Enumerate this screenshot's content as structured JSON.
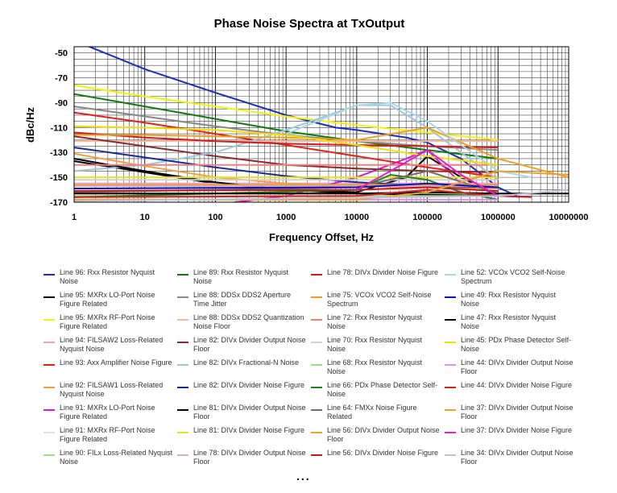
{
  "chart_data": {
    "type": "line",
    "title": "Phase Noise Spectra at TxOutput",
    "xlabel": "Frequency Offset, Hz",
    "ylabel": "dBc/Hz",
    "x_scale": "log",
    "xlim": [
      1,
      1000000
    ],
    "ylim": [
      -170,
      -45
    ],
    "x_ticks": [
      "1",
      "10",
      "100",
      "1000",
      "10000",
      "100000",
      "1000000",
      "10000000"
    ],
    "y_ticks": [
      "-50",
      "-70",
      "-90",
      "-110",
      "-130",
      "-150",
      "-170"
    ],
    "grid": true,
    "legend_position": "bottom",
    "series": [
      {
        "name": "Line 96: Rxx Resistor Nyquist Noise",
        "color": "#1a2fb8",
        "x": [
          1,
          10,
          100,
          1000,
          5000,
          10000,
          50000,
          100000,
          300000,
          1000000,
          2000000
        ],
        "y": [
          -40,
          -63,
          -82,
          -100,
          -110,
          -112,
          -118,
          -122,
          -135,
          -158,
          -166
        ]
      },
      {
        "name": "Line 95: MXRx LO-Port Noise Figure Related",
        "color": "#000000",
        "x": [
          1,
          100,
          1000,
          10000,
          50000,
          100000,
          300000,
          1000000
        ],
        "y": [
          -137,
          -155,
          -160,
          -162,
          -150,
          -133,
          -150,
          -165
        ]
      },
      {
        "name": "Line 95: MXRx RF-Port Noise Figure Related",
        "color": "#f2f20a",
        "x": [
          1,
          10,
          100,
          1000,
          10000,
          100000,
          1000000
        ],
        "y": [
          -76,
          -85,
          -93,
          -101,
          -108,
          -114,
          -120
        ]
      },
      {
        "name": "Line 94: FILSAW2 Loss-Related Nyquist Noise",
        "color": "#f09ae0",
        "x": [
          1,
          1000000
        ],
        "y": [
          -155,
          -155
        ]
      },
      {
        "name": "Line 93: Axx Amplifier Noise Figure",
        "color": "#e8201a",
        "x": [
          1,
          10,
          100,
          1000,
          10000,
          100000,
          1000000
        ],
        "y": [
          -98,
          -106,
          -115,
          -124,
          -133,
          -142,
          -150
        ]
      },
      {
        "name": "Line 92: FILSAW1 Loss-Related Nyquist Noise",
        "color": "#f0a040",
        "x": [
          1,
          10,
          100,
          1000,
          10000,
          100000,
          1000000
        ],
        "y": [
          -131,
          -141,
          -150,
          -155,
          -157,
          -158,
          -159
        ]
      },
      {
        "name": "Line 91: MXRx LO-Port Noise Figure Related",
        "color": "#d418d0",
        "x": [
          10,
          100,
          1000,
          10000,
          50000,
          100000,
          300000
        ],
        "y": [
          -176,
          -172,
          -165,
          -150,
          -135,
          -128,
          -155
        ]
      },
      {
        "name": "Line 91: MXRx RF-Port Noise Figure Related",
        "color": "#e0e0e0",
        "x": [
          1,
          1000000
        ],
        "y": [
          -160,
          -160
        ]
      },
      {
        "name": "Line 90: FILx Loss-Related Nyquist Noise",
        "color": "#9ee08a",
        "x": [
          1,
          1000000
        ],
        "y": [
          -163,
          -163
        ]
      },
      {
        "name": "Line 89: Rxx Resistor Nyquist Noise",
        "color": "#107a10",
        "x": [
          1,
          10,
          100,
          1000,
          10000,
          100000,
          1000000
        ],
        "y": [
          -83,
          -93,
          -103,
          -113,
          -121,
          -128,
          -135
        ]
      },
      {
        "name": "Line 88: DDSx DDS2 Aperture Time Jitter",
        "color": "#888888",
        "x": [
          1,
          10,
          100,
          1000,
          10000,
          100000,
          1000000
        ],
        "y": [
          -93,
          -101,
          -109,
          -116,
          -121,
          -125,
          -128
        ]
      },
      {
        "name": "Line 88: DDSx DDS2 Quantization Noise Floor",
        "color": "#f5b8a0",
        "x": [
          1,
          1000000
        ],
        "y": [
          -121,
          -121
        ]
      },
      {
        "name": "Line 82: DIVx Divider Output Noise Floor",
        "color": "#8a2a2a",
        "x": [
          1,
          10,
          100,
          1000,
          10000,
          100000,
          1000000
        ],
        "y": [
          -117,
          -125,
          -133,
          -140,
          -143,
          -145,
          -146
        ]
      },
      {
        "name": "Line 82: DIVx Fractional-N Noise",
        "color": "#9ec8d8",
        "x": [
          1,
          10,
          100,
          1000,
          10000,
          30000,
          100000,
          1000000
        ],
        "y": [
          -145,
          -140,
          -130,
          -112,
          -92,
          -92,
          -110,
          -152
        ]
      },
      {
        "name": "Line 82: DIVx Divider Noise Figure",
        "color": "#1a2a9a",
        "x": [
          1,
          10,
          100,
          1000,
          10000,
          100000,
          1000000
        ],
        "y": [
          -126,
          -134,
          -142,
          -149,
          -154,
          -157,
          -158
        ]
      },
      {
        "name": "Line 81: DIVx Divider Output Noise Floor",
        "color": "#000000",
        "x": [
          1,
          10,
          100,
          1000,
          10000,
          100000,
          1000000
        ],
        "y": [
          -135,
          -145,
          -154,
          -160,
          -163,
          -164,
          -165
        ]
      },
      {
        "name": "Line 81: DIVx Divider Noise Figure",
        "color": "#e8e020",
        "x": [
          1,
          1000000
        ],
        "y": [
          -150,
          -150
        ]
      },
      {
        "name": "Line 78: DIVx Divider Output Noise Floor",
        "color": "#c8b0e0",
        "x": [
          1,
          1000000
        ],
        "y": [
          -157,
          -157
        ]
      },
      {
        "name": "Line 78: DIVx Divider Noise Figure",
        "color": "#d41a1a",
        "x": [
          1,
          10,
          100,
          1000,
          10000,
          100000,
          1000000
        ],
        "y": [
          -114,
          -118,
          -121,
          -123,
          -124,
          -125,
          -126
        ]
      },
      {
        "name": "Line 75: VCOx VCO2 Self-Noise Spectrum",
        "color": "#f0a020",
        "x": [
          1,
          10,
          100,
          1000,
          10000,
          100000,
          1000000,
          10000000
        ],
        "y": [
          -116,
          -116,
          -117,
          -118,
          -120,
          -110,
          -135,
          -150
        ]
      },
      {
        "name": "Line 72: Rxx Resistor Nyquist Noise",
        "color": "#f08080",
        "x": [
          1,
          1000000
        ],
        "y": [
          -140,
          -140
        ]
      },
      {
        "name": "Line 70: Rxx Resistor Nyquist Noise",
        "color": "#d0d0d0",
        "x": [
          1,
          1000000
        ],
        "y": [
          -152,
          -152
        ]
      },
      {
        "name": "Line 68: Rxx Resistor Nyquist Noise",
        "color": "#a0d890",
        "x": [
          1,
          1000000
        ],
        "y": [
          -165,
          -165
        ]
      },
      {
        "name": "Line 66: PDx Phase Detector Self-Noise",
        "color": "#20801a",
        "x": [
          1,
          10000,
          30000,
          100000,
          300000,
          1000000
        ],
        "y": [
          -166,
          -160,
          -148,
          -152,
          -162,
          -168
        ]
      },
      {
        "name": "Line 64: FMXx Noise Figure Related",
        "color": "#707070",
        "x": [
          1,
          100,
          10000,
          100000,
          1000000
        ],
        "y": [
          -162,
          -160,
          -158,
          -145,
          -163
        ]
      },
      {
        "name": "Line 56: DIVx Divider Output Noise Floor",
        "color": "#f0a030",
        "x": [
          1,
          1000000
        ],
        "y": [
          -156,
          -156
        ]
      },
      {
        "name": "Line 56: DIVx Divider Noise Figure",
        "color": "#c81818",
        "x": [
          1,
          10000,
          100000,
          1000000
        ],
        "y": [
          -161,
          -160,
          -158,
          -161
        ]
      },
      {
        "name": "Line 52: VCOx VCO2 Self-Noise Spectrum",
        "color": "#a8d8e8",
        "x": [
          1000,
          10000,
          30000,
          100000,
          1000000,
          3000000
        ],
        "y": [
          -115,
          -92,
          -90,
          -105,
          -145,
          -150
        ]
      },
      {
        "name": "Line 49: Rxx Resistor Nyquist Noise",
        "color": "#1010c0",
        "x": [
          1,
          10000,
          100000,
          1000000
        ],
        "y": [
          -159,
          -158,
          -155,
          -158
        ]
      },
      {
        "name": "Line 47: Rxx Resistor Nyquist Noise",
        "color": "#000000",
        "x": [
          1,
          10000,
          100000,
          1000000,
          10000000
        ],
        "y": [
          -163,
          -163,
          -162,
          -163,
          -163
        ]
      },
      {
        "name": "Line 45: PDx Phase Detector Self-Noise",
        "color": "#f0e000",
        "x": [
          1,
          10,
          100,
          1000,
          10000,
          100000,
          1000000
        ],
        "y": [
          -109,
          -110,
          -112,
          -116,
          -124,
          -133,
          -140
        ]
      },
      {
        "name": "Line 44: DIVx Divider Output Noise Floor",
        "color": "#e090f0",
        "x": [
          1,
          1000000
        ],
        "y": [
          -168,
          -168
        ]
      },
      {
        "name": "Line 44: DIVx Divider Noise Figure",
        "color": "#d02020",
        "x": [
          1,
          10000,
          100000,
          1000000,
          3000000
        ],
        "y": [
          -166,
          -165,
          -160,
          -165,
          -166
        ]
      },
      {
        "name": "Line 37: DIVx Divider Output Noise Floor",
        "color": "#f0a030",
        "x": [
          1,
          10000,
          100000,
          1000000,
          10000000
        ],
        "y": [
          -168,
          -168,
          -162,
          -145,
          -148
        ]
      },
      {
        "name": "Line 37: DIVx Divider Noise Figure",
        "color": "#e020d0",
        "x": [
          10000,
          30000,
          100000,
          300000,
          1000000
        ],
        "y": [
          -160,
          -145,
          -128,
          -148,
          -165
        ]
      },
      {
        "name": "Line 34: DIVx Divider Output Noise Floor",
        "color": "#c0c0d8",
        "x": [
          1,
          1000000,
          10000000
        ],
        "y": [
          -169,
          -165,
          -160
        ]
      }
    ],
    "legend_more": "..."
  }
}
